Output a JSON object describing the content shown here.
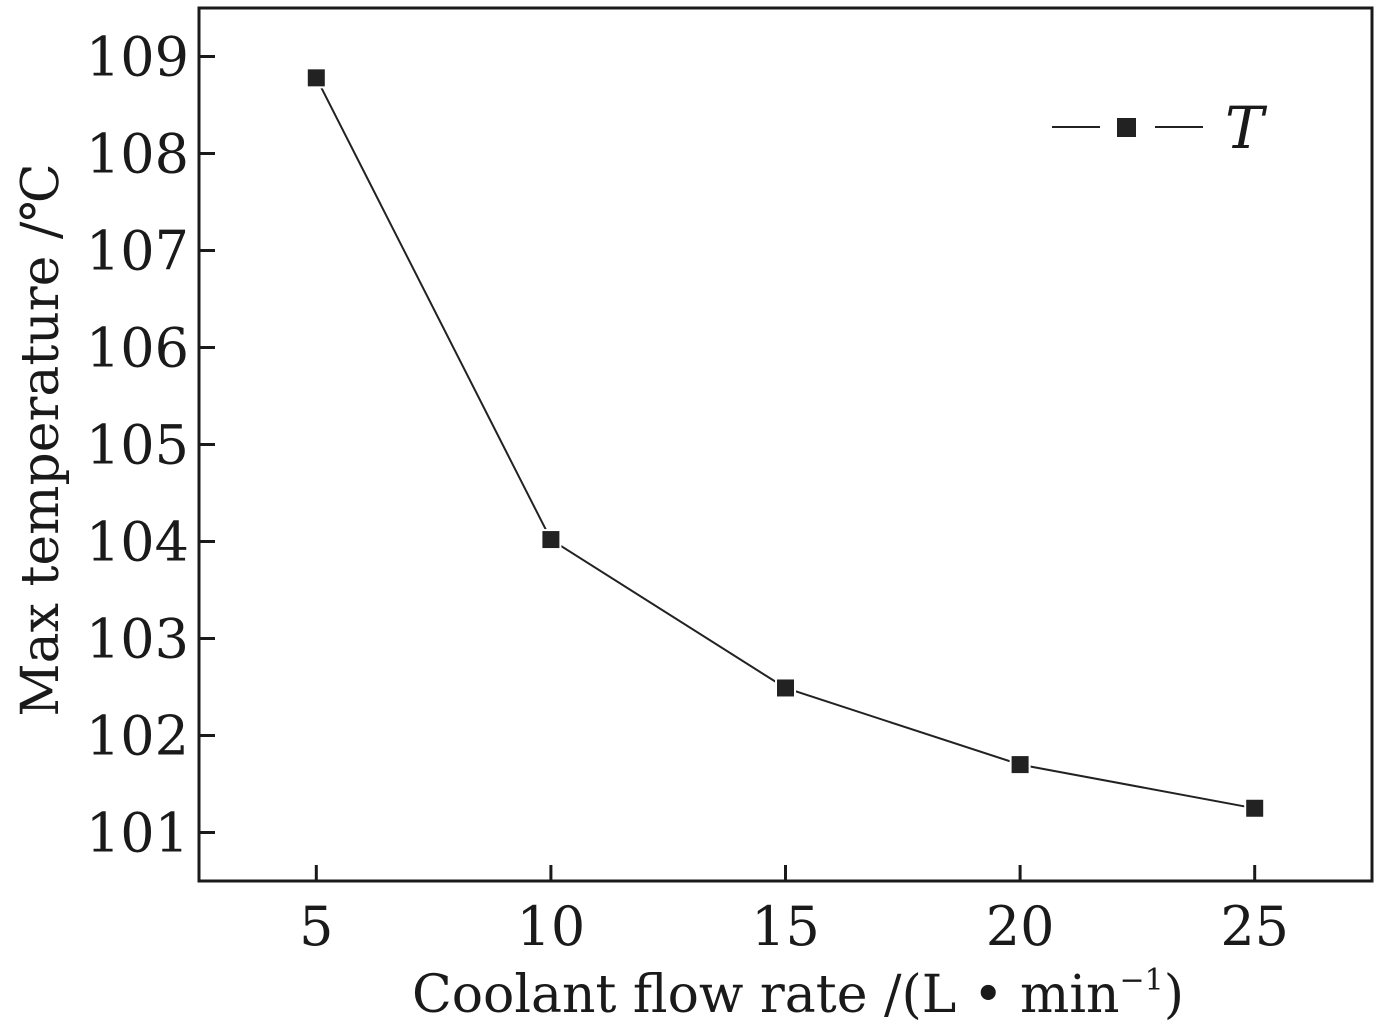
{
  "chart_data": {
    "type": "line",
    "title": "",
    "xlabel": "Coolant flow rate /(L • min",
    "xlabel_sup": "−1",
    "xlabel_close": ")",
    "ylabel": "Max temperature /℃",
    "xlim": [
      2.5,
      27.5
    ],
    "ylim": [
      100.5,
      109.5
    ],
    "xticks": [
      5,
      10,
      15,
      20,
      25
    ],
    "yticks": [
      101,
      102,
      103,
      104,
      105,
      106,
      107,
      108,
      109
    ],
    "grid": false,
    "legend_position": "top-right",
    "series": [
      {
        "name": "T",
        "marker": "square",
        "color": "#222222",
        "x": [
          5,
          10,
          15,
          20,
          25
        ],
        "y": [
          108.78,
          104.02,
          102.49,
          101.7,
          101.25
        ]
      }
    ]
  }
}
